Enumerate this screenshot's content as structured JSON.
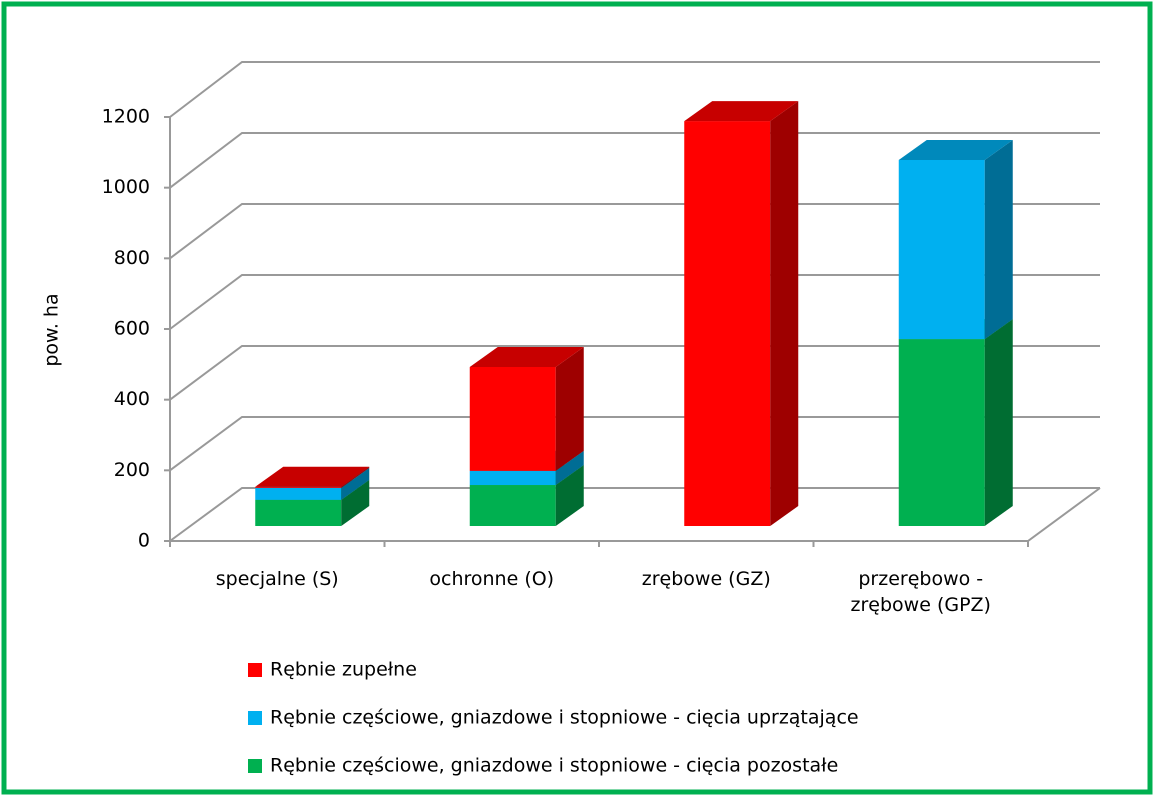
{
  "chart_data": {
    "type": "bar3d_stacked",
    "y_label": "pow. ha",
    "categories": [
      "specjalne (S)",
      "ochronne (O)",
      "zrębowe (GZ)",
      "przerębowo - zrębowe (GPZ)"
    ],
    "series": [
      {
        "name": "Rębnie zupełne",
        "color": "#ff0000",
        "values": [
          3,
          294,
          1146,
          0
        ]
      },
      {
        "name": "Rębnie częściowe, gniazdowe i stopniowe - cięcia uprzątające",
        "color": "#00b0f0",
        "values": [
          34,
          40,
          0,
          507
        ]
      },
      {
        "name": "Rębnie częściowe, gniazdowe i stopniowe - cięcia pozostałe",
        "color": "#00b050",
        "values": [
          74,
          116,
          0,
          529
        ]
      }
    ],
    "ylim": [
      0,
      1200
    ],
    "yticks": [
      0,
      200,
      400,
      600,
      800,
      1000,
      1200
    ],
    "grid": true
  }
}
